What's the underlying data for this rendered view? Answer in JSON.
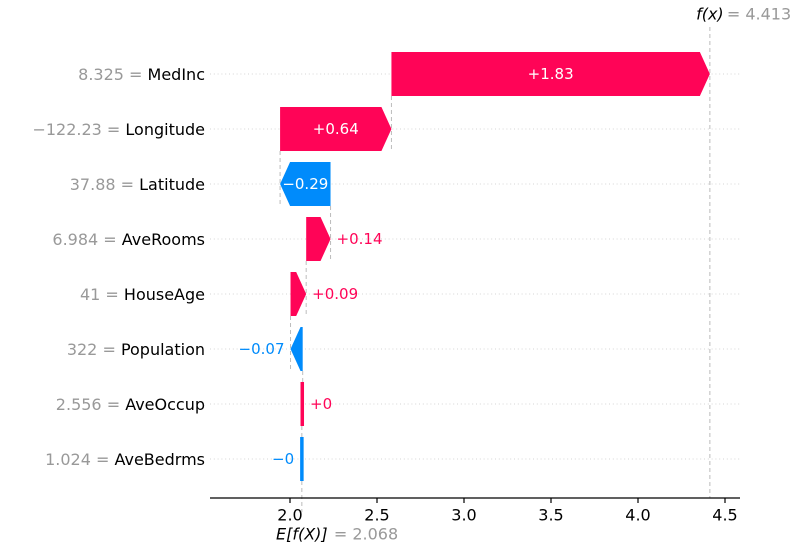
{
  "chart_data": {
    "type": "waterfall",
    "title": "",
    "model_output": {
      "label": "f(x)",
      "equals": "=",
      "value_text": "4.413",
      "value": 4.413
    },
    "base_value": {
      "label": "E[f(X)]",
      "equals": "=",
      "value_text": "2.068",
      "value": 2.068
    },
    "equals_sign": "=",
    "xticks": {
      "values": [
        2.0,
        2.5,
        3.0,
        3.5,
        4.0,
        4.5
      ],
      "labels": [
        "2.0",
        "2.5",
        "3.0",
        "3.5",
        "4.0",
        "4.5"
      ]
    },
    "xlim": [
      1.54,
      4.59
    ],
    "grid": "dotted-horizontal-row-lines",
    "legend": "none",
    "features": [
      {
        "name": "MedInc",
        "feature_value": "8.325",
        "shap": 1.83,
        "label": "+1.83",
        "direction": "positive"
      },
      {
        "name": "Longitude",
        "feature_value": "−122.23",
        "shap": 0.64,
        "label": "+0.64",
        "direction": "positive"
      },
      {
        "name": "Latitude",
        "feature_value": "37.88",
        "shap": -0.29,
        "label": "−0.29",
        "direction": "negative"
      },
      {
        "name": "AveRooms",
        "feature_value": "6.984",
        "shap": 0.14,
        "label": "+0.14",
        "direction": "positive"
      },
      {
        "name": "HouseAge",
        "feature_value": "41",
        "shap": 0.09,
        "label": "+0.09",
        "direction": "positive"
      },
      {
        "name": "Population",
        "feature_value": "322",
        "shap": -0.07,
        "label": "−0.07",
        "direction": "negative"
      },
      {
        "name": "AveOccup",
        "feature_value": "2.556",
        "shap": 0.005,
        "label": "+0",
        "direction": "positive"
      },
      {
        "name": "AveBedrms",
        "feature_value": "1.024",
        "shap": -0.0005,
        "label": "−0",
        "direction": "negative"
      }
    ],
    "colors": {
      "positive": "#ff0457",
      "negative": "#008bfb",
      "bar_label_inside": "#ffffff",
      "value_text": "#999999",
      "feature_text": "#000000",
      "connector": "#bcbcbc",
      "gridline": "#d6d6d6",
      "axis": "#000000"
    }
  }
}
